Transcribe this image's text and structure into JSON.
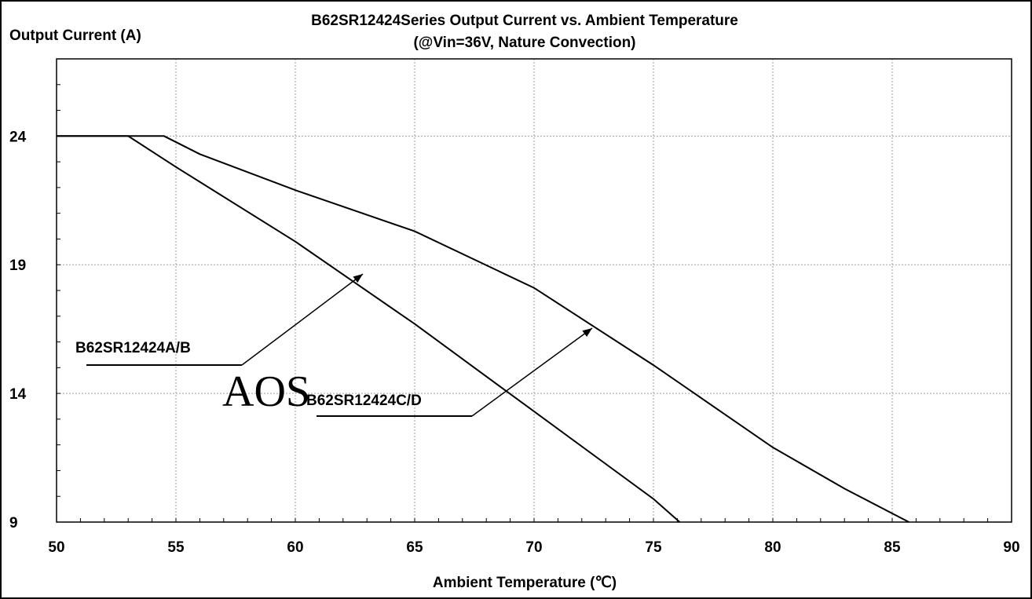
{
  "chart_data": {
    "type": "line",
    "title": "B62SR12424Series  Output Current vs. Ambient Temperature",
    "subtitle": "(@Vin=36V, Nature Convection)",
    "ylabel": "Output Current (A)",
    "xlabel": "Ambient Temperature (℃)",
    "xlim": [
      50,
      90
    ],
    "ylim": [
      9,
      27
    ],
    "x_ticks": [
      "50",
      "55",
      "60",
      "65",
      "70",
      "75",
      "80",
      "85",
      "90"
    ],
    "y_ticks": [
      "9",
      "14",
      "19",
      "24"
    ],
    "grid": true,
    "watermark": "AOS",
    "series": [
      {
        "name": "B62SR12424A/B",
        "points": [
          [
            50,
            24
          ],
          [
            53,
            24
          ],
          [
            55,
            22.8
          ],
          [
            60,
            19.9
          ],
          [
            65,
            16.7
          ],
          [
            70,
            13.3
          ],
          [
            75,
            9.9
          ],
          [
            76.1,
            9
          ]
        ]
      },
      {
        "name": "B62SR12424C/D",
        "points": [
          [
            50,
            24
          ],
          [
            54.5,
            24
          ],
          [
            56,
            23.3
          ],
          [
            60,
            21.9
          ],
          [
            65,
            20.3
          ],
          [
            70,
            18.1
          ],
          [
            75,
            15.1
          ],
          [
            80,
            11.9
          ],
          [
            83,
            10.3
          ],
          [
            85.7,
            9
          ]
        ]
      }
    ]
  }
}
